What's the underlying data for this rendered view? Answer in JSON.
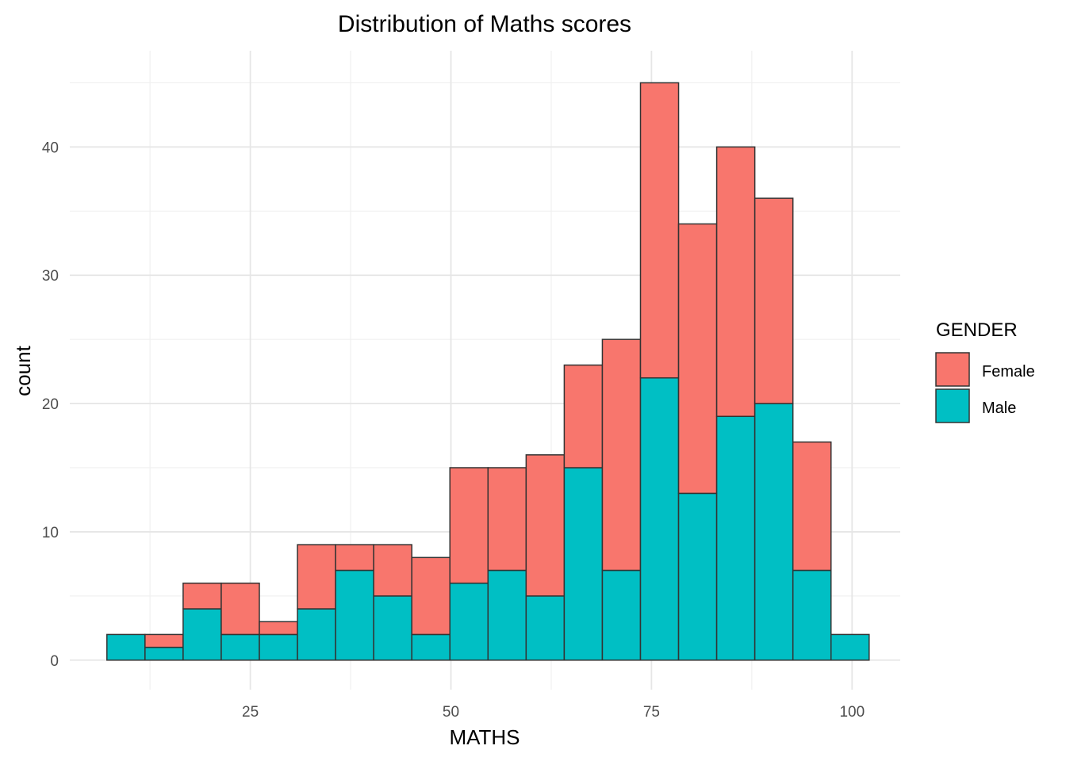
{
  "chart_data": {
    "type": "bar",
    "stacked": true,
    "title": "Distribution of Maths scores",
    "xlabel": "MATHS",
    "ylabel": "count",
    "xlim": [
      2.5,
      106
    ],
    "ylim": [
      -2.3,
      47.5
    ],
    "x_ticks": [
      25,
      50,
      75,
      100
    ],
    "y_ticks": [
      0,
      10,
      20,
      30,
      40
    ],
    "grid": true,
    "bin_width": 4.75,
    "bin_centers": [
      9.5,
      14.25,
      19.0,
      23.75,
      28.5,
      33.25,
      38.0,
      42.75,
      47.5,
      52.25,
      57.0,
      61.75,
      66.5,
      71.25,
      76.0,
      80.75,
      85.5,
      90.25,
      95.0,
      99.75
    ],
    "legend": {
      "title": "GENDER",
      "position": "right",
      "entries": [
        "Female",
        "Male"
      ]
    },
    "series": [
      {
        "name": "Female",
        "color": "#F8766D",
        "values": [
          0,
          1,
          2,
          4,
          1,
          5,
          2,
          4,
          6,
          9,
          8,
          11,
          8,
          18,
          23,
          21,
          21,
          16,
          10,
          0
        ]
      },
      {
        "name": "Male",
        "color": "#00BFC4",
        "values": [
          2,
          1,
          4,
          2,
          2,
          4,
          7,
          5,
          2,
          6,
          7,
          5,
          15,
          7,
          22,
          13,
          19,
          20,
          7,
          2
        ]
      }
    ],
    "totals": [
      2,
      2,
      6,
      6,
      3,
      9,
      9,
      9,
      8,
      15,
      15,
      16,
      23,
      25,
      45,
      34,
      40,
      36,
      17,
      2
    ]
  }
}
